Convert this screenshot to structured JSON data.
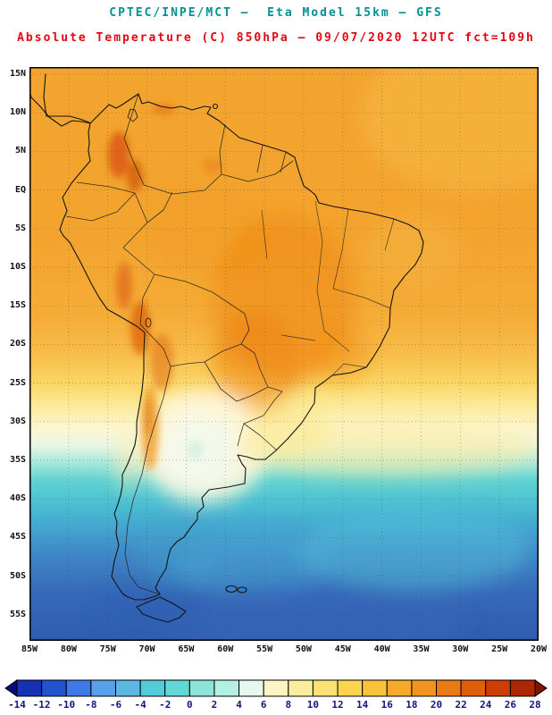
{
  "header": {
    "line1": "CPTEC/INPE/MCT –  Eta Model 15km – GFS",
    "line2": "Absolute Temperature (C) 850hPa – 09/07/2020 12UTC fct=109h",
    "line1_color": "#009193",
    "line2_color": "#e30613"
  },
  "map": {
    "lat_labels": [
      "15N",
      "10N",
      "5N",
      "EQ",
      "5S",
      "10S",
      "15S",
      "20S",
      "25S",
      "30S",
      "35S",
      "40S",
      "45S",
      "50S",
      "55S"
    ],
    "lon_labels": [
      "85W",
      "80W",
      "75W",
      "70W",
      "65W",
      "60W",
      "55W",
      "50W",
      "45W",
      "40W",
      "35W",
      "30W",
      "25W",
      "20W"
    ]
  },
  "colorbar": {
    "tick_labels": [
      "-14",
      "-12",
      "-10",
      "-8",
      "-6",
      "-4",
      "-2",
      "0",
      "2",
      "4",
      "6",
      "8",
      "10",
      "12",
      "14",
      "16",
      "18",
      "20",
      "22",
      "24",
      "26",
      "28"
    ],
    "cells": [
      "#080a78",
      "#1532b4",
      "#2353cc",
      "#3e7ae6",
      "#58a0ea",
      "#5cb8e0",
      "#52ccd8",
      "#62d8d4",
      "#8ce4da",
      "#b4efe4",
      "#e6f8ee",
      "#fdf4c4",
      "#fcec9e",
      "#fce276",
      "#fbd452",
      "#f9c23a",
      "#f6aa2c",
      "#f19320",
      "#ea7a14",
      "#df5e0c",
      "#cd3e06",
      "#ae2604",
      "#7e1402"
    ],
    "label_color": "#14147a"
  },
  "chart_data": {
    "type": "heatmap",
    "title": "Absolute Temperature (C) 850hPa",
    "source": "CPTEC/INPE/MCT",
    "model": "Eta Model 15km – GFS",
    "valid": "09/07/2020 12UTC fct=109h",
    "scale_values_c": [
      -14,
      -12,
      -10,
      -8,
      -6,
      -4,
      -2,
      0,
      2,
      4,
      6,
      8,
      10,
      12,
      14,
      16,
      18,
      20,
      22,
      24,
      26,
      28
    ],
    "lat_range": [
      "15N",
      "55S"
    ],
    "lon_range": [
      "85W",
      "20W"
    ],
    "legend_position": "bottom"
  }
}
